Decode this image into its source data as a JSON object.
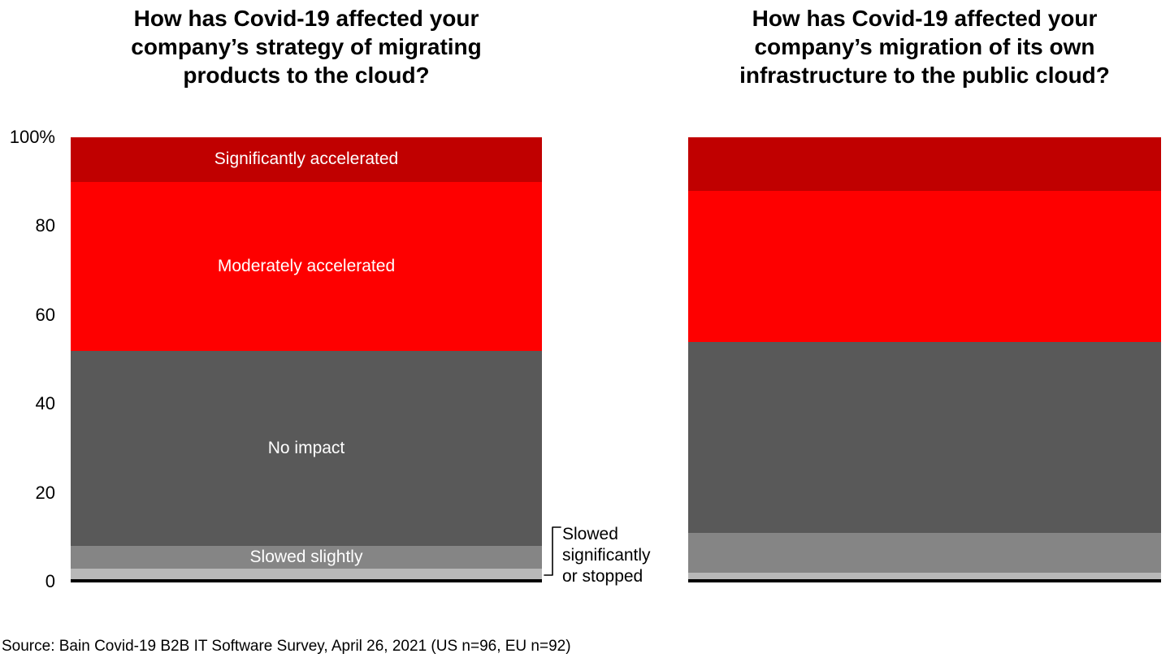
{
  "titles": {
    "left_lines": [
      "How has Covid-19 affected your",
      "company’s strategy of migrating",
      "products to the cloud?"
    ],
    "right_lines": [
      "How has Covid-19 affected your",
      "company’s migration of its own",
      "infrastructure to the public cloud?"
    ]
  },
  "y_axis": {
    "ticks": [
      {
        "label": "100%",
        "value": 100
      },
      {
        "label": "80",
        "value": 80
      },
      {
        "label": "60",
        "value": 60
      },
      {
        "label": "40",
        "value": 40
      },
      {
        "label": "20",
        "value": 20
      },
      {
        "label": "0",
        "value": 0
      }
    ]
  },
  "annotation": {
    "lines": [
      "Slowed",
      "significantly",
      "or stopped"
    ]
  },
  "source": "Source: Bain Covid-19 B2B IT Software Survey, April 26, 2021 (US n=96, EU n=92)",
  "colors": {
    "significantly_accelerated": "#c00000",
    "moderately_accelerated": "#fe0000",
    "no_impact": "#595959",
    "slowed_slightly": "#858585",
    "slowed_significantly_or_stopped": "#b8b8b8",
    "axis_line": "#000000",
    "bar_label_text": "#ffffff"
  },
  "chart_data": [
    {
      "type": "bar",
      "stacked": true,
      "title": "How has Covid-19 affected your company’s strategy of migrating products to the cloud?",
      "ylim": [
        0,
        100
      ],
      "grid": false,
      "legend": "labels inside segments",
      "segments_top_to_bottom": [
        {
          "label": "Significantly accelerated",
          "value": 10,
          "color": "#c00000",
          "label_visible": true
        },
        {
          "label": "Moderately accelerated",
          "value": 38,
          "color": "#fe0000",
          "label_visible": true
        },
        {
          "label": "No impact",
          "value": 44,
          "color": "#595959",
          "label_visible": true
        },
        {
          "label": "Slowed slightly",
          "value": 5,
          "color": "#858585",
          "label_visible": true
        },
        {
          "label": "Slowed significantly or stopped",
          "value": 3,
          "color": "#b8b8b8",
          "label_visible": false
        }
      ]
    },
    {
      "type": "bar",
      "stacked": true,
      "title": "How has Covid-19 affected your company’s migration of its own infrastructure to the public cloud?",
      "ylim": [
        0,
        100
      ],
      "grid": false,
      "legend": "none",
      "segments_top_to_bottom": [
        {
          "label": "Significantly accelerated",
          "value": 12,
          "color": "#c00000",
          "label_visible": false
        },
        {
          "label": "Moderately accelerated",
          "value": 34,
          "color": "#fe0000",
          "label_visible": false
        },
        {
          "label": "No impact",
          "value": 43,
          "color": "#595959",
          "label_visible": false
        },
        {
          "label": "Slowed slightly",
          "value": 9,
          "color": "#858585",
          "label_visible": false
        },
        {
          "label": "Slowed significantly or stopped",
          "value": 2,
          "color": "#b8b8b8",
          "label_visible": false
        }
      ]
    }
  ]
}
